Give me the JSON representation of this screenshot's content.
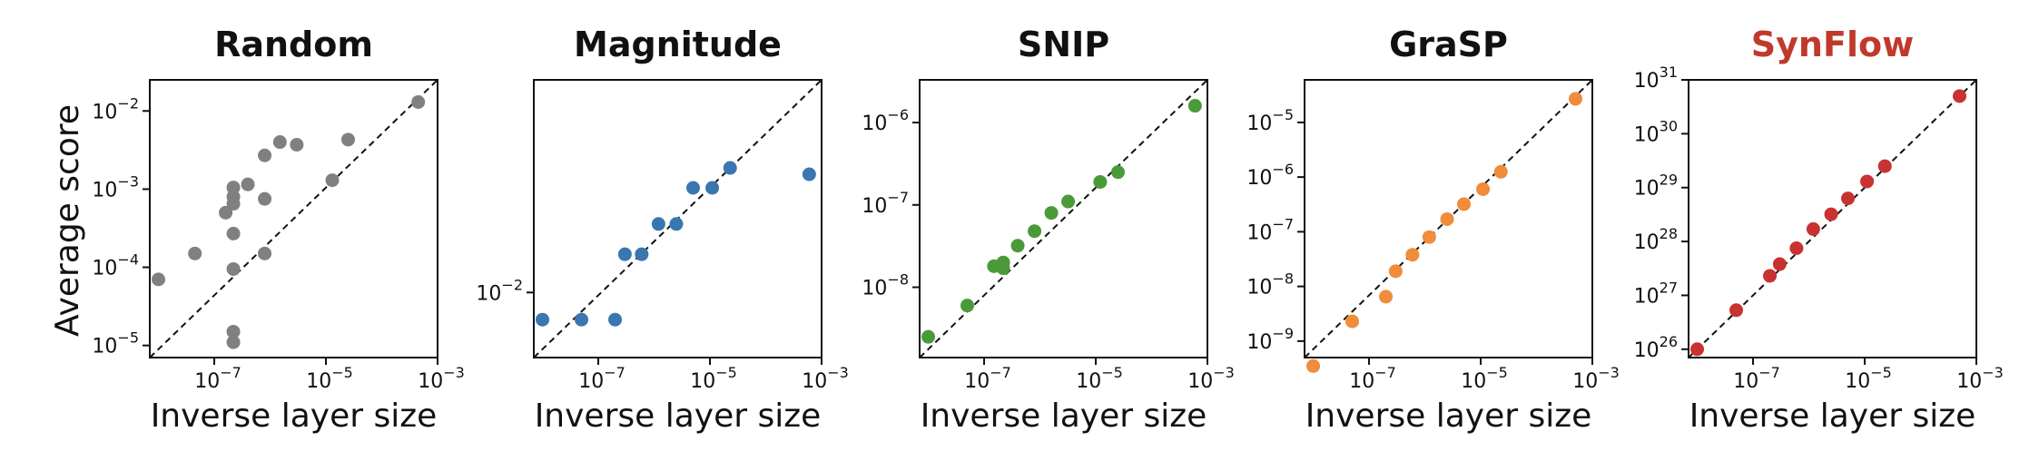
{
  "panel_titles": [
    "Random",
    "Magnitude",
    "SNIP",
    "GraSP",
    "SynFlow"
  ],
  "ylabel": "Average score",
  "xlabel": "Inverse layer size",
  "colors": {
    "random": "#808080",
    "magnitude": "#3a76b0",
    "snip": "#4a9a3a",
    "grasp": "#f08c3a",
    "synflow": "#c83230",
    "synflow_title": "#c0392b"
  },
  "chart_data": [
    {
      "type": "scatter",
      "title": "Random",
      "xlabel": "Inverse layer size",
      "ylabel": "Average score",
      "xscale": "log",
      "yscale": "log",
      "x_ticks": [
        {
          "value": 1e-07,
          "base": "10",
          "exp": "−7"
        },
        {
          "value": 1e-05,
          "base": "10",
          "exp": "−5"
        },
        {
          "value": 0.001,
          "base": "10",
          "exp": "−3"
        }
      ],
      "y_ticks": [
        {
          "value": 1e-05,
          "base": "10",
          "exp": "−5"
        },
        {
          "value": 0.0001,
          "base": "10",
          "exp": "−4"
        },
        {
          "value": 0.001,
          "base": "10",
          "exp": "−3"
        },
        {
          "value": 0.01,
          "base": "10",
          "exp": "−2"
        }
      ],
      "xlim": [
        7e-09,
        0.001
      ],
      "ylim": [
        7e-06,
        0.025
      ],
      "reference_line": "y = x (dashed)",
      "color": "#808080",
      "points": [
        [
          1e-08,
          7e-05
        ],
        [
          4.5e-08,
          0.00015
        ],
        [
          1.6e-07,
          0.0005
        ],
        [
          2.2e-07,
          1.5e-05
        ],
        [
          2.2e-07,
          1.1e-05
        ],
        [
          2.2e-07,
          9.5e-05
        ],
        [
          2.2e-07,
          0.00027
        ],
        [
          2.2e-07,
          0.00065
        ],
        [
          2.2e-07,
          0.0008
        ],
        [
          2.2e-07,
          0.00105
        ],
        [
          4e-07,
          0.00115
        ],
        [
          8e-07,
          0.00015
        ],
        [
          8e-07,
          0.00075
        ],
        [
          8e-07,
          0.0027
        ],
        [
          1.5e-06,
          0.004
        ],
        [
          3e-06,
          0.0037
        ],
        [
          1.3e-05,
          0.0013
        ],
        [
          2.5e-05,
          0.0043
        ],
        [
          0.00045,
          0.013
        ]
      ]
    },
    {
      "type": "scatter",
      "title": "Magnitude",
      "xlabel": "Inverse layer size",
      "xscale": "log",
      "yscale": "log",
      "x_ticks": [
        {
          "value": 1e-07,
          "base": "10",
          "exp": "−7"
        },
        {
          "value": 1e-05,
          "base": "10",
          "exp": "−5"
        },
        {
          "value": 0.001,
          "base": "10",
          "exp": "−3"
        }
      ],
      "y_ticks": [
        {
          "value": 0.01,
          "base": "10",
          "exp": "−2"
        }
      ],
      "xlim": [
        7e-09,
        0.001
      ],
      "ylim": [
        0.0064,
        0.043
      ],
      "reference_line": "y = x (dashed)",
      "color": "#3a76b0",
      "points": [
        [
          1e-08,
          0.0083
        ],
        [
          5e-08,
          0.0083
        ],
        [
          2e-07,
          0.0083
        ],
        [
          3e-07,
          0.013
        ],
        [
          6e-07,
          0.013
        ],
        [
          1.2e-06,
          0.016
        ],
        [
          2.5e-06,
          0.016
        ],
        [
          5e-06,
          0.0205
        ],
        [
          1.1e-05,
          0.0205
        ],
        [
          2.3e-05,
          0.0235
        ],
        [
          0.0006,
          0.0225
        ]
      ]
    },
    {
      "type": "scatter",
      "title": "SNIP",
      "xlabel": "Inverse layer size",
      "xscale": "log",
      "yscale": "log",
      "x_ticks": [
        {
          "value": 1e-07,
          "base": "10",
          "exp": "−7"
        },
        {
          "value": 1e-05,
          "base": "10",
          "exp": "−5"
        },
        {
          "value": 0.001,
          "base": "10",
          "exp": "−3"
        }
      ],
      "y_ticks": [
        {
          "value": 1e-08,
          "base": "10",
          "exp": "−8"
        },
        {
          "value": 1e-07,
          "base": "10",
          "exp": "−7"
        },
        {
          "value": 1e-06,
          "base": "10",
          "exp": "−6"
        }
      ],
      "xlim": [
        7e-09,
        0.001
      ],
      "ylim": [
        1.4e-09,
        3.3e-06
      ],
      "reference_line": "y = x (dashed)",
      "color": "#4a9a3a",
      "points": [
        [
          1e-08,
          2.5e-09
        ],
        [
          5e-08,
          6e-09
        ],
        [
          1.5e-07,
          1.8e-08
        ],
        [
          2.2e-07,
          1.7e-08
        ],
        [
          2.2e-07,
          2e-08
        ],
        [
          4e-07,
          3.2e-08
        ],
        [
          8e-07,
          4.8e-08
        ],
        [
          1.6e-06,
          8e-08
        ],
        [
          3.2e-06,
          1.1e-07
        ],
        [
          1.2e-05,
          1.9e-07
        ],
        [
          2.5e-05,
          2.5e-07
        ],
        [
          0.0006,
          1.6e-06
        ]
      ]
    },
    {
      "type": "scatter",
      "title": "GraSP",
      "xlabel": "Inverse layer size",
      "xscale": "log",
      "yscale": "log",
      "x_ticks": [
        {
          "value": 1e-07,
          "base": "10",
          "exp": "−7"
        },
        {
          "value": 1e-05,
          "base": "10",
          "exp": "−5"
        },
        {
          "value": 0.001,
          "base": "10",
          "exp": "−3"
        }
      ],
      "y_ticks": [
        {
          "value": 1e-09,
          "base": "10",
          "exp": "−9"
        },
        {
          "value": 1e-08,
          "base": "10",
          "exp": "−8"
        },
        {
          "value": 1e-07,
          "base": "10",
          "exp": "−7"
        },
        {
          "value": 1e-06,
          "base": "10",
          "exp": "−6"
        },
        {
          "value": 1e-05,
          "base": "10",
          "exp": "−5"
        }
      ],
      "xlim": [
        7e-09,
        0.001
      ],
      "ylim": [
        5e-10,
        6e-05
      ],
      "reference_line": "y = x (dashed)",
      "color": "#f08c3a",
      "points": [
        [
          1e-08,
          3.5e-10
        ],
        [
          5e-08,
          2.3e-09
        ],
        [
          2e-07,
          6.5e-09
        ],
        [
          3e-07,
          1.9e-08
        ],
        [
          6e-07,
          3.8e-08
        ],
        [
          1.2e-06,
          8e-08
        ],
        [
          2.5e-06,
          1.7e-07
        ],
        [
          5e-06,
          3.2e-07
        ],
        [
          1.1e-05,
          6e-07
        ],
        [
          2.3e-05,
          1.25e-06
        ],
        [
          0.0005,
          2.7e-05
        ]
      ]
    },
    {
      "type": "scatter",
      "title": "SynFlow",
      "xlabel": "Inverse layer size",
      "xscale": "log",
      "yscale": "log",
      "x_ticks": [
        {
          "value": 1e-07,
          "base": "10",
          "exp": "−7"
        },
        {
          "value": 1e-05,
          "base": "10",
          "exp": "−5"
        },
        {
          "value": 0.001,
          "base": "10",
          "exp": "−3"
        }
      ],
      "y_ticks": [
        {
          "value": 1e+26,
          "base": "10",
          "exp": "26"
        },
        {
          "value": 1e+27,
          "base": "10",
          "exp": "27"
        },
        {
          "value": 1e+28,
          "base": "10",
          "exp": "28"
        },
        {
          "value": 1e+29,
          "base": "10",
          "exp": "29"
        },
        {
          "value": 1e+30,
          "base": "10",
          "exp": "30"
        },
        {
          "value": 1e+31,
          "base": "10",
          "exp": "31"
        }
      ],
      "xlim": [
        7e-09,
        0.001
      ],
      "ylim": [
        7e+25,
        1e+31
      ],
      "reference_line": "y = x (dashed)",
      "color": "#c83230",
      "points": [
        [
          1e-08,
          1e+26
        ],
        [
          5e-08,
          5.3e+26
        ],
        [
          2e-07,
          2.3e+27
        ],
        [
          3e-07,
          3.8e+27
        ],
        [
          6e-07,
          7.5e+27
        ],
        [
          1.2e-06,
          1.7e+28
        ],
        [
          2.5e-06,
          3.2e+28
        ],
        [
          5e-06,
          6.3e+28
        ],
        [
          1.1e-05,
          1.3e+29
        ],
        [
          2.3e-05,
          2.5e+29
        ],
        [
          0.0005,
          5e+30
        ]
      ]
    }
  ]
}
